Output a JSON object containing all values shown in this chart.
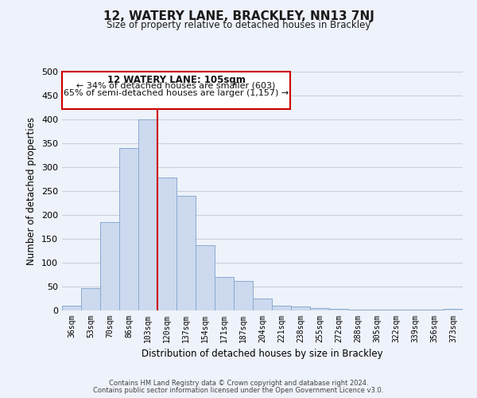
{
  "title_line1": "12, WATERY LANE, BRACKLEY, NN13 7NJ",
  "title_line2": "Size of property relative to detached houses in Brackley",
  "xlabel": "Distribution of detached houses by size in Brackley",
  "ylabel": "Number of detached properties",
  "bar_color": "#ccd9ee",
  "bar_edge_color": "#8aaad0",
  "bar_face_alpha": 0.6,
  "grid_color": "#c8d0e0",
  "vline_color": "#cc0000",
  "vline_x": 4.5,
  "categories": [
    "36sqm",
    "53sqm",
    "70sqm",
    "86sqm",
    "103sqm",
    "120sqm",
    "137sqm",
    "154sqm",
    "171sqm",
    "187sqm",
    "204sqm",
    "221sqm",
    "238sqm",
    "255sqm",
    "272sqm",
    "288sqm",
    "305sqm",
    "322sqm",
    "339sqm",
    "356sqm",
    "373sqm"
  ],
  "values": [
    10,
    47,
    185,
    340,
    400,
    278,
    240,
    136,
    70,
    61,
    25,
    10,
    8,
    5,
    3,
    2,
    1,
    1,
    1,
    1,
    3
  ],
  "ylim": [
    0,
    500
  ],
  "yticks": [
    0,
    50,
    100,
    150,
    200,
    250,
    300,
    350,
    400,
    450,
    500
  ],
  "annotation_title": "12 WATERY LANE: 105sqm",
  "annotation_line2": "← 34% of detached houses are smaller (603)",
  "annotation_line3": "65% of semi-detached houses are larger (1,157) →",
  "footer_line1": "Contains HM Land Registry data © Crown copyright and database right 2024.",
  "footer_line2": "Contains public sector information licensed under the Open Government Licence v3.0.",
  "background_color": "#eef2fa",
  "plot_bg_color": "#eef2fa"
}
